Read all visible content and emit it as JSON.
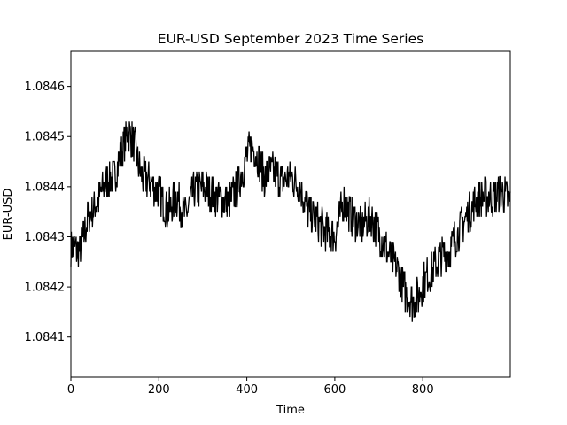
{
  "chart_data": {
    "type": "line",
    "title": "EUR-USD September 2023 Time Series",
    "xlabel": "Time",
    "ylabel": "EUR-USD",
    "xlim": [
      0,
      999
    ],
    "ylim": [
      1.08402,
      1.08467
    ],
    "xticks": [
      0,
      200,
      400,
      600,
      800
    ],
    "xtick_labels": [
      "0",
      "200",
      "400",
      "600",
      "800"
    ],
    "yticks": [
      1.0841,
      1.0842,
      1.0843,
      1.0844,
      1.0845,
      1.0846
    ],
    "ytick_labels": [
      "1.0841",
      "1.0842",
      "1.0843",
      "1.0844",
      "1.0845",
      "1.0846"
    ],
    "grid": false,
    "series": [
      {
        "name": "EUR-USD",
        "color": "#000000",
        "n_points": 1000,
        "noise": 4e-05,
        "anchors": [
          [
            0,
            1.08428
          ],
          [
            20,
            1.08427
          ],
          [
            40,
            1.08434
          ],
          [
            60,
            1.08437
          ],
          [
            80,
            1.08441
          ],
          [
            100,
            1.08442
          ],
          [
            115,
            1.08447
          ],
          [
            130,
            1.08451
          ],
          [
            145,
            1.08448
          ],
          [
            160,
            1.08442
          ],
          [
            180,
            1.08441
          ],
          [
            200,
            1.08439
          ],
          [
            220,
            1.08435
          ],
          [
            240,
            1.08438
          ],
          [
            260,
            1.08434
          ],
          [
            280,
            1.08439
          ],
          [
            300,
            1.0844
          ],
          [
            330,
            1.08438
          ],
          [
            360,
            1.08437
          ],
          [
            380,
            1.0844
          ],
          [
            400,
            1.08446
          ],
          [
            410,
            1.08448
          ],
          [
            420,
            1.08447
          ],
          [
            440,
            1.08442
          ],
          [
            460,
            1.08443
          ],
          [
            480,
            1.08441
          ],
          [
            500,
            1.08442
          ],
          [
            520,
            1.0844
          ],
          [
            540,
            1.08435
          ],
          [
            560,
            1.08433
          ],
          [
            580,
            1.08431
          ],
          [
            600,
            1.0843
          ],
          [
            620,
            1.08437
          ],
          [
            640,
            1.08434
          ],
          [
            660,
            1.08432
          ],
          [
            680,
            1.08434
          ],
          [
            700,
            1.08431
          ],
          [
            720,
            1.08427
          ],
          [
            740,
            1.08424
          ],
          [
            760,
            1.08419
          ],
          [
            775,
            1.08417
          ],
          [
            790,
            1.08418
          ],
          [
            800,
            1.08421
          ],
          [
            820,
            1.08423
          ],
          [
            840,
            1.08426
          ],
          [
            860,
            1.08427
          ],
          [
            880,
            1.08431
          ],
          [
            900,
            1.08434
          ],
          [
            920,
            1.08437
          ],
          [
            940,
            1.08438
          ],
          [
            960,
            1.08438
          ],
          [
            980,
            1.08439
          ],
          [
            999,
            1.08437
          ]
        ]
      }
    ]
  }
}
